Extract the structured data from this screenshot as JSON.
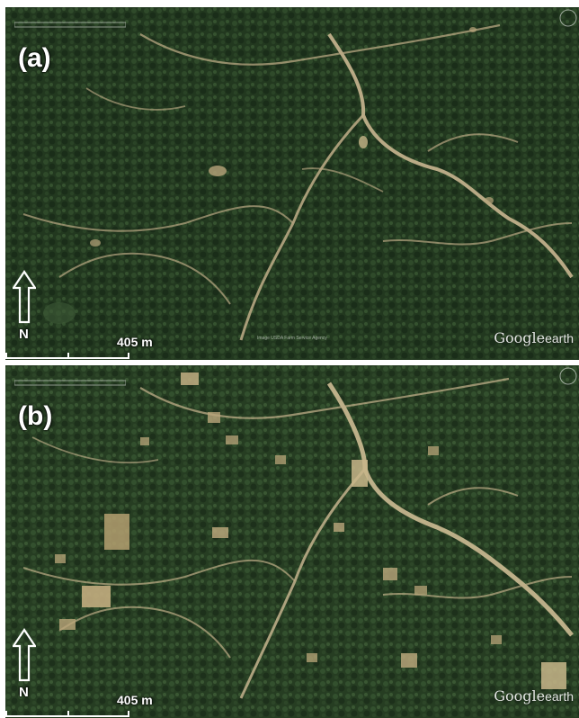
{
  "panels": [
    {
      "id": "a",
      "label": "(a)",
      "north_label": "N",
      "scale_label": "405 m",
      "watermark": {
        "brand": "Google",
        "product": "earth"
      },
      "credit": "Image USDA Farm Service Agency"
    },
    {
      "id": "b",
      "label": "(b)",
      "north_label": "N",
      "scale_label": "405 m",
      "watermark": {
        "brand": "Google",
        "product": "earth"
      },
      "credit": ""
    }
  ],
  "colors": {
    "forest_dark": "#1e3220",
    "forest_mid": "#2e4a2c",
    "road": "#c9b690",
    "clearing": "#b8a47a",
    "label": "#ffffff"
  }
}
